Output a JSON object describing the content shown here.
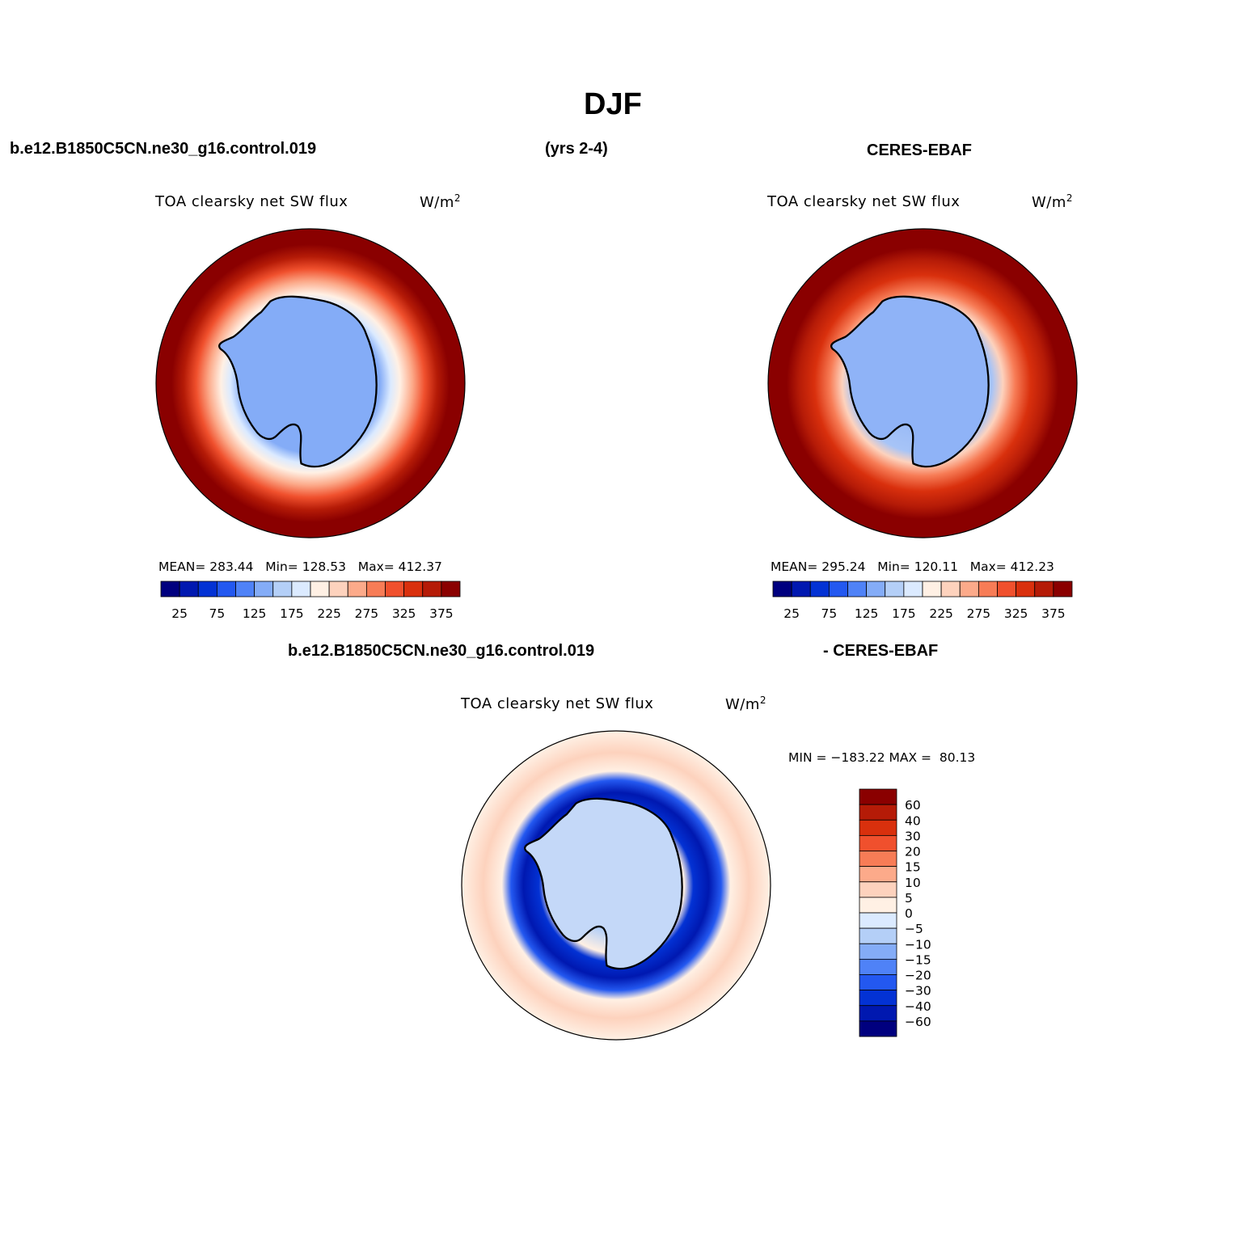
{
  "figure": {
    "season": "DJF",
    "case_name": "b.e12.B1850C5CN.ne30_g16.control.019",
    "years": "(yrs 2-4)",
    "obs_name": "CERES-EBAF",
    "diff_case_name": "b.e12.B1850C5CN.ne30_g16.control.019",
    "diff_obs_name": "- CERES-EBAF"
  },
  "panels": {
    "model": {
      "variable": "TOA clearsky net SW flux",
      "units": "W/m",
      "units_exp": "2",
      "stats": "MEAN= 283.44   Min= 128.53   Max= 412.37"
    },
    "obs": {
      "variable": "TOA clearsky net SW flux",
      "units": "W/m",
      "units_exp": "2",
      "stats": "MEAN= 295.24   Min= 120.11   Max= 412.23"
    },
    "diff": {
      "variable": "TOA clearsky net SW flux",
      "units": "W/m",
      "units_exp": "2",
      "stats": "MIN = −183.22 MAX =  80.13"
    }
  },
  "colorbars": {
    "absolute": {
      "colors": [
        "#00007f",
        "#0018b0",
        "#0332d4",
        "#2358f0",
        "#4f82f7",
        "#84acf7",
        "#b4cff7",
        "#dbeaff",
        "#fff0e4",
        "#fdd2bd",
        "#fcaa8a",
        "#f77c56",
        "#f0502d",
        "#d9300d",
        "#b51b07",
        "#8a0000"
      ],
      "tick_labels": [
        "25",
        "75",
        "125",
        "175",
        "225",
        "275",
        "325",
        "375"
      ]
    },
    "difference": {
      "colors": [
        "#00007f",
        "#0018b0",
        "#0332d4",
        "#2358f0",
        "#4f82f7",
        "#84acf7",
        "#b4cff7",
        "#dbeaff",
        "#fff0e4",
        "#fdd2bd",
        "#fcaa8a",
        "#f77c56",
        "#f0502d",
        "#d9300d",
        "#b51b07",
        "#8a0000"
      ],
      "tick_labels": [
        "60",
        "40",
        "30",
        "20",
        "15",
        "10",
        "5",
        "0",
        "−5",
        "−10",
        "−15",
        "−20",
        "−30",
        "−40",
        "−60"
      ]
    }
  }
}
